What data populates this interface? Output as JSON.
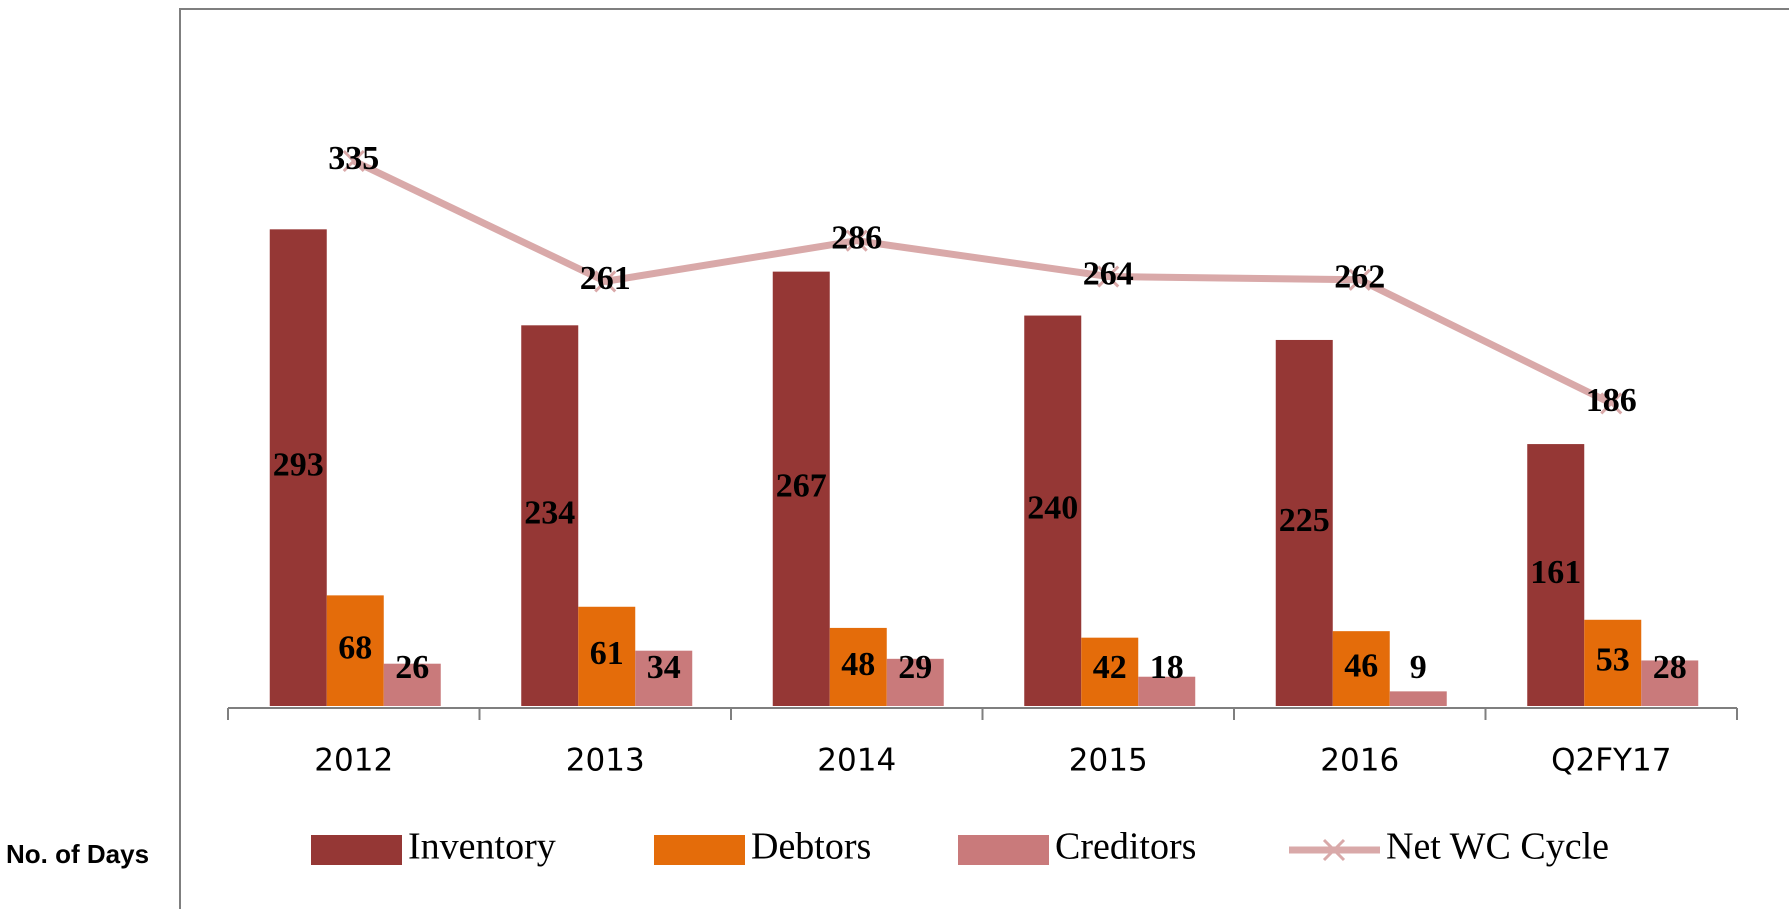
{
  "chart_data": {
    "type": "bar_line",
    "ylabel": "No. of Days",
    "categories": [
      "2012",
      "2013",
      "2014",
      "2015",
      "2016",
      "Q2FY17"
    ],
    "series": [
      {
        "name": "Inventory",
        "type": "bar",
        "color": "#953735",
        "values": [
          293,
          234,
          267,
          240,
          225,
          161
        ]
      },
      {
        "name": "Debtors",
        "type": "bar",
        "color": "#e46c0a",
        "values": [
          68,
          61,
          48,
          42,
          46,
          53
        ]
      },
      {
        "name": "Creditors",
        "type": "bar",
        "color": "#c97a7b",
        "values": [
          26,
          34,
          29,
          18,
          9,
          28
        ]
      },
      {
        "name": "Net WC Cycle",
        "type": "line",
        "color": "#d9a9a9",
        "values": [
          335,
          261,
          286,
          264,
          262,
          186
        ]
      }
    ]
  }
}
